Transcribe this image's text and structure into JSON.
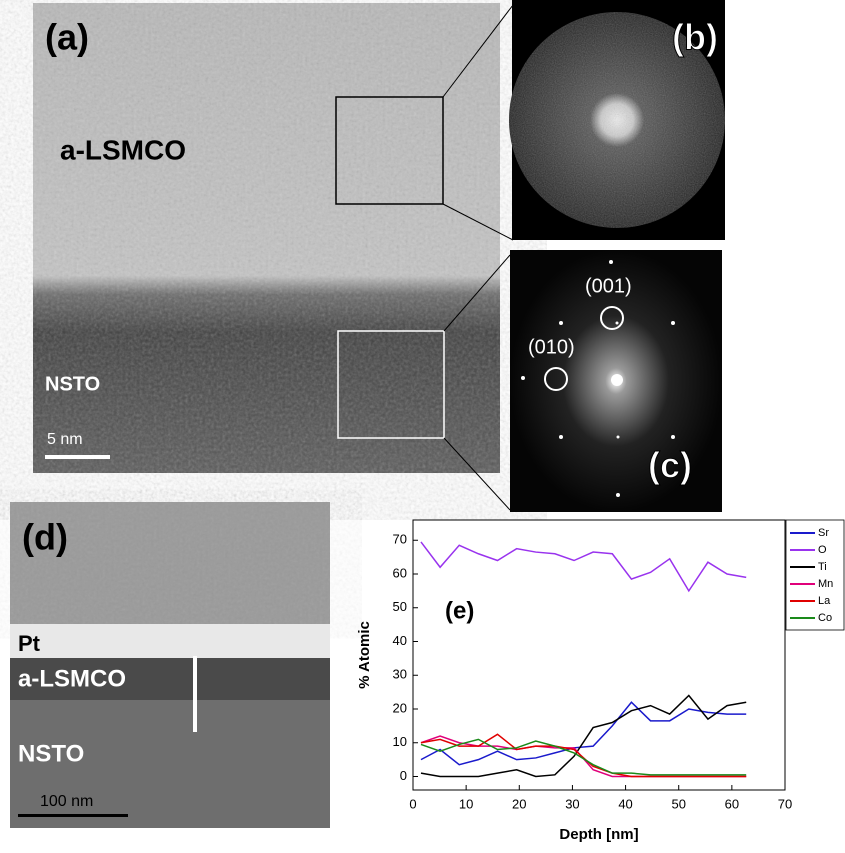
{
  "panels": {
    "a": {
      "label": "(a)",
      "film": "a-LSMCO",
      "substrate": "NSTO",
      "scale_bar": "5 nm"
    },
    "b": {
      "label": "(b)"
    },
    "c": {
      "label": "(c)",
      "spots": [
        "(001)",
        "(010)"
      ]
    },
    "d": {
      "label": "(d)",
      "layers": [
        "Pt",
        "a-LSMCO",
        "NSTO"
      ],
      "scale_bar": "100 nm"
    }
  },
  "chart_data": {
    "type": "line",
    "label": "(e)",
    "x_label": "Depth [nm]",
    "y_label": "% Atomic",
    "x": [
      1.5,
      5.1,
      8.7,
      12.3,
      15.9,
      19.5,
      23.1,
      26.7,
      30.3,
      33.9,
      37.5,
      41.1,
      44.7,
      48.3,
      51.9,
      55.5,
      59.1,
      62.7
    ],
    "series": [
      {
        "name": "Sr",
        "color": "#1a1acc",
        "values": [
          5,
          8,
          3.5,
          5,
          7.5,
          5,
          5.5,
          7,
          8.5,
          9,
          15,
          22,
          16.5,
          16.5,
          20,
          19,
          18.5,
          18.5
        ]
      },
      {
        "name": "O",
        "color": "#9933ee",
        "values": [
          69.5,
          62,
          68.5,
          66,
          64,
          67.5,
          66.5,
          66,
          64,
          66.5,
          66,
          58.5,
          60.5,
          64.5,
          55,
          63.5,
          60,
          59
        ]
      },
      {
        "name": "Ti",
        "color": "#000000",
        "values": [
          1,
          0,
          0,
          0,
          1,
          2,
          0,
          0.5,
          6,
          14.5,
          16,
          19.5,
          21,
          18.5,
          24,
          17,
          21,
          22
        ]
      },
      {
        "name": "Mn",
        "color": "#e0007a",
        "values": [
          10,
          12,
          10,
          9,
          9,
          8,
          9,
          8.5,
          8.5,
          2,
          0,
          0,
          0,
          0,
          0,
          0,
          0,
          0
        ]
      },
      {
        "name": "La",
        "color": "#e00000",
        "values": [
          10,
          11,
          9,
          9,
          12.5,
          8,
          9,
          9,
          8,
          3,
          1,
          0,
          0,
          0,
          0,
          0,
          0,
          0
        ]
      },
      {
        "name": "Co",
        "color": "#1a8a1a",
        "values": [
          9.5,
          7.5,
          9.5,
          11,
          8,
          8.5,
          10.5,
          9,
          7,
          3.5,
          1,
          1,
          0.5,
          0.5,
          0.5,
          0.5,
          0.5,
          0.5
        ]
      }
    ],
    "xlim": [
      0,
      70
    ],
    "xticks": [
      0,
      10,
      20,
      30,
      40,
      50,
      60,
      70
    ],
    "ylim": [
      -4,
      76
    ],
    "yticks": [
      0,
      10,
      20,
      30,
      40,
      50,
      60,
      70
    ],
    "legend": "outside-right"
  }
}
